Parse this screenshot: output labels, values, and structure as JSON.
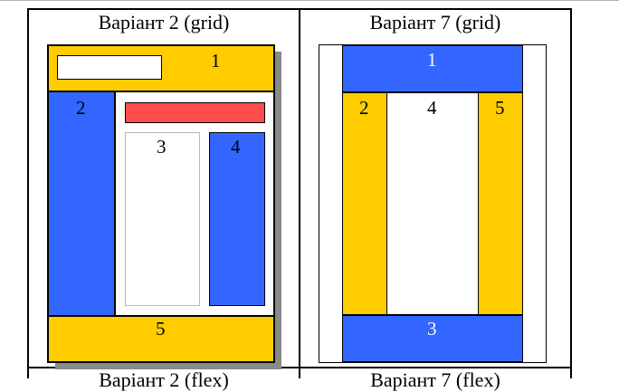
{
  "table": {
    "cells": [
      {
        "title": "Варіант 2 (grid)",
        "blocks": {
          "b1": "1",
          "b2": "2",
          "b3": "3",
          "b4": "4",
          "b5": "5"
        }
      },
      {
        "title": "Варіант 7 (grid)",
        "blocks": {
          "b1": "1",
          "b2": "2",
          "b3": "3",
          "b4": "4",
          "b5": "5"
        }
      }
    ],
    "next_row": [
      "Варіант 2 (flex)",
      "Варіант 7 (flex)"
    ]
  },
  "colors": {
    "yellow": "#ffcc00",
    "blue": "#3366ff",
    "red": "#ff4d4d",
    "white": "#ffffff",
    "shadow": "#8a8a8a",
    "border": "#000000"
  }
}
